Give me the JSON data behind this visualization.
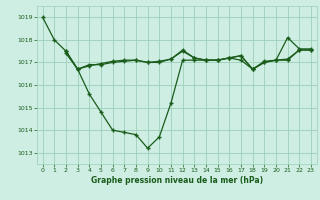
{
  "line1": {
    "x": [
      0,
      1,
      2,
      3,
      4,
      5,
      6,
      7,
      8,
      9,
      10,
      11,
      12,
      13,
      14,
      15,
      16,
      17,
      18,
      19,
      20,
      21,
      22,
      23
    ],
    "y": [
      1019.0,
      1018.0,
      1017.5,
      1016.7,
      1015.6,
      1014.8,
      1014.0,
      1013.9,
      1013.8,
      1013.2,
      1013.7,
      1015.2,
      1017.1,
      1017.1,
      1017.1,
      1017.1,
      1017.2,
      1017.3,
      1016.7,
      1017.0,
      1017.1,
      1018.1,
      1017.6,
      1017.6
    ]
  },
  "line2": {
    "x": [
      2,
      3,
      4,
      5,
      6,
      7,
      8,
      9,
      10,
      11,
      12,
      13,
      14,
      15,
      16,
      17,
      18,
      19,
      20,
      21,
      22,
      23
    ],
    "y": [
      1017.5,
      1016.7,
      1016.85,
      1016.95,
      1017.05,
      1017.1,
      1017.1,
      1017.0,
      1017.0,
      1017.15,
      1017.5,
      1017.2,
      1017.1,
      1017.1,
      1017.2,
      1017.1,
      1016.7,
      1017.0,
      1017.1,
      1017.15,
      1017.55,
      1017.55
    ]
  },
  "line3": {
    "x": [
      2,
      3,
      4,
      5,
      6,
      7,
      8,
      9,
      10,
      11,
      12,
      13,
      14,
      15,
      16,
      17,
      18,
      19,
      20,
      21,
      22,
      23
    ],
    "y": [
      1017.4,
      1016.7,
      1016.9,
      1016.9,
      1017.0,
      1017.05,
      1017.1,
      1017.0,
      1017.05,
      1017.15,
      1017.55,
      1017.2,
      1017.1,
      1017.1,
      1017.2,
      1017.3,
      1016.7,
      1017.05,
      1017.1,
      1017.1,
      1017.55,
      1017.55
    ]
  },
  "bg_color": "#ceeee4",
  "line_color": "#1a5c1a",
  "grid_color": "#9ccfba",
  "text_color": "#1a5c1a",
  "xlabel": "Graphe pression niveau de la mer (hPa)",
  "ylim": [
    1012.5,
    1019.5
  ],
  "xlim": [
    -0.5,
    23.5
  ],
  "yticks": [
    1013,
    1014,
    1015,
    1016,
    1017,
    1018,
    1019
  ],
  "xticks": [
    0,
    1,
    2,
    3,
    4,
    5,
    6,
    7,
    8,
    9,
    10,
    11,
    12,
    13,
    14,
    15,
    16,
    17,
    18,
    19,
    20,
    21,
    22,
    23
  ]
}
